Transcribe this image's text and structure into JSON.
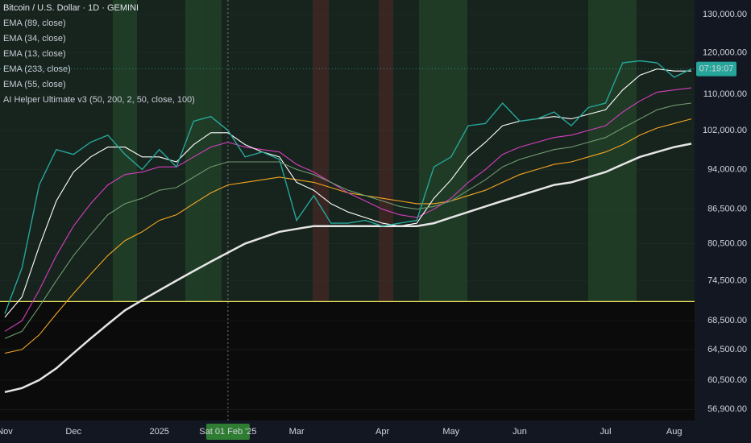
{
  "chart_data": {
    "type": "line",
    "title": "Bitcoin / U.S. Dollar · 1D · GEMINI",
    "indicator": "AI Helper Ultimate v3 (50, 200, 2, 50, close, 100)",
    "price_tag": "07:19:07",
    "categories": [
      "Nov",
      null,
      null,
      null,
      "Dec",
      null,
      null,
      null,
      null,
      "2025",
      null,
      null,
      null,
      "Sat 01 Feb '25",
      null,
      null,
      null,
      "Mar",
      null,
      null,
      null,
      null,
      "Apr",
      null,
      null,
      null,
      "May",
      null,
      null,
      null,
      "Jun",
      null,
      null,
      null,
      null,
      "Jul",
      null,
      null,
      null,
      "Aug",
      null
    ],
    "values": [
      69500,
      76500,
      91000,
      98000,
      97000,
      99500,
      101000,
      97000,
      94000,
      98000,
      94500,
      104000,
      105000,
      102000,
      96500,
      97500,
      96000,
      84500,
      89000,
      84000,
      84000,
      84500,
      83500,
      84000,
      84500,
      94500,
      96500,
      103000,
      103500,
      108000,
      104000,
      104500,
      106000,
      103000,
      107000,
      108000,
      117500,
      118000,
      117500,
      114000,
      116000
    ],
    "color": "#26a69a",
    "series": [
      {
        "name": "EMA (89, close)",
        "color": "#f5a623",
        "values": [
          64000,
          64500,
          66500,
          69500,
          72500,
          75500,
          78500,
          81000,
          82500,
          84500,
          85500,
          87500,
          89500,
          91000,
          91500,
          92000,
          92500,
          92000,
          91500,
          90500,
          89500,
          89000,
          88500,
          88000,
          87500,
          87500,
          88000,
          89000,
          90000,
          91500,
          93000,
          94000,
          95000,
          95500,
          96500,
          97500,
          99000,
          101000,
          102500,
          103500,
          104500
        ]
      },
      {
        "name": "EMA (34, close)",
        "color": "#d63fbf",
        "values": [
          67000,
          68500,
          73000,
          78500,
          83500,
          87500,
          91000,
          93000,
          93500,
          94500,
          94500,
          96500,
          98500,
          99500,
          98500,
          98000,
          97500,
          95000,
          93500,
          91500,
          89500,
          88000,
          86500,
          85500,
          85000,
          86500,
          88500,
          91500,
          94000,
          97000,
          98500,
          99500,
          100500,
          101000,
          102000,
          103000,
          106000,
          108500,
          110500,
          111000,
          111500
        ]
      },
      {
        "name": "EMA (13, close)",
        "color": "#ffffff",
        "values": [
          69000,
          72000,
          80000,
          88000,
          93500,
          96500,
          98500,
          98500,
          96500,
          96500,
          95500,
          99000,
          101500,
          101500,
          99000,
          97500,
          96500,
          91500,
          90000,
          87500,
          86000,
          85000,
          84000,
          83500,
          84000,
          88500,
          92000,
          96500,
          99500,
          103000,
          104000,
          104500,
          105000,
          104500,
          105500,
          106500,
          111000,
          114500,
          116000,
          115500,
          115500
        ]
      },
      {
        "name": "EMA (233, close)",
        "color": "#e6e6e6",
        "values": [
          59000,
          59500,
          60500,
          62000,
          64000,
          66000,
          68000,
          70000,
          71500,
          73000,
          74500,
          76000,
          77500,
          79000,
          80500,
          81500,
          82500,
          83000,
          83500,
          83500,
          83500,
          83500,
          83500,
          83500,
          83500,
          84000,
          85000,
          86000,
          87000,
          88000,
          89000,
          90000,
          91000,
          91500,
          92500,
          93500,
          95000,
          96500,
          97500,
          98500,
          99200
        ]
      },
      {
        "name": "EMA (55, close)",
        "color": "#6f9a6f",
        "values": [
          66000,
          67000,
          70500,
          74500,
          78500,
          82000,
          85500,
          87500,
          88500,
          90000,
          90500,
          92500,
          94500,
          95500,
          95500,
          95500,
          95500,
          94000,
          93000,
          91500,
          90000,
          89000,
          88000,
          87000,
          86500,
          87000,
          88000,
          90000,
          92000,
          94500,
          96000,
          97000,
          98000,
          98500,
          99500,
          100500,
          102500,
          104500,
          106500,
          107500,
          108000
        ]
      }
    ],
    "hline": 71300,
    "hline_color": "#f2e55c",
    "log_scale": true,
    "ylim": [
      55600,
      134000
    ],
    "yticks": [
      {
        "value": 130000,
        "label": "130,000.00"
      },
      {
        "value": 120000,
        "label": "120,000.00"
      },
      {
        "value": 110000,
        "label": "110,000.00"
      },
      {
        "value": 102000,
        "label": "102,000.00"
      },
      {
        "value": 94000,
        "label": "94,000.00"
      },
      {
        "value": 86500,
        "label": "86,500.00"
      },
      {
        "value": 80500,
        "label": "80,500.00"
      },
      {
        "value": 74500,
        "label": "74,500.00"
      },
      {
        "value": 68500,
        "label": "68,500.00"
      },
      {
        "value": 64500,
        "label": "64,500.00"
      },
      {
        "value": 60500,
        "label": "60,500.00"
      },
      {
        "value": 56900,
        "label": "56,900.00"
      }
    ]
  }
}
